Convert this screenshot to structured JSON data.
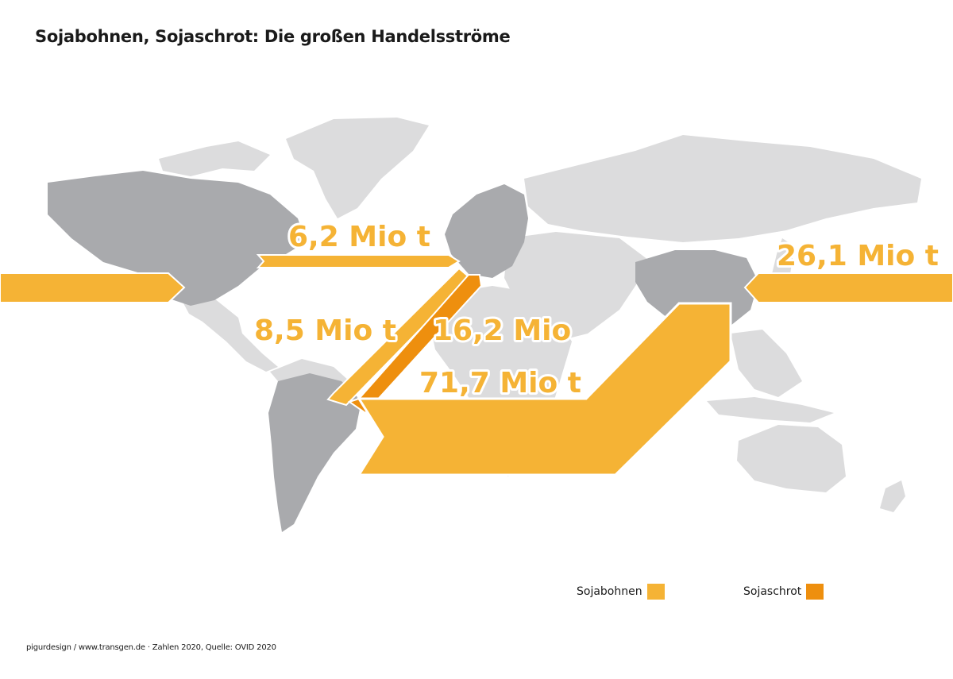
{
  "title": "Sojabohnen, Sojaschrot: Die großen Handelsströme",
  "colors": {
    "soybeans": "#f5b335",
    "soymeal": "#ee8f0e",
    "land_highlight": "#a9aaad",
    "land_other": "#dcdcdd",
    "background": "#ffffff"
  },
  "flows": [
    {
      "id": "us-europe",
      "label": "6,2 Mio t",
      "value_mio_t": 6.2,
      "product": "Sojabohnen",
      "from": "USA",
      "to": "Europa"
    },
    {
      "id": "brazil-europe-beans",
      "label": "8,5 Mio t",
      "value_mio_t": 8.5,
      "product": "Sojabohnen",
      "from": "Südamerika",
      "to": "Europa"
    },
    {
      "id": "south-america-europe-meal",
      "label": "16,2 Mio",
      "value_mio_t": 16.2,
      "product": "Sojaschrot",
      "from": "Südamerika",
      "to": "Europa"
    },
    {
      "id": "brazil-china",
      "label": "71,7 Mio t",
      "value_mio_t": 71.7,
      "product": "Sojabohnen",
      "from": "Südamerika",
      "to": "China"
    },
    {
      "id": "us-china",
      "label": "26,1 Mio t",
      "value_mio_t": 26.1,
      "product": "Sojabohnen",
      "from": "USA",
      "to": "China"
    }
  ],
  "legend": [
    {
      "label": "Sojabohnen",
      "color": "#f5b335"
    },
    {
      "label": "Sojaschrot",
      "color": "#ee8f0e"
    }
  ],
  "footer": "pigurdesign / www.transgen.de · Zahlen 2020, Quelle: OVID 2020"
}
